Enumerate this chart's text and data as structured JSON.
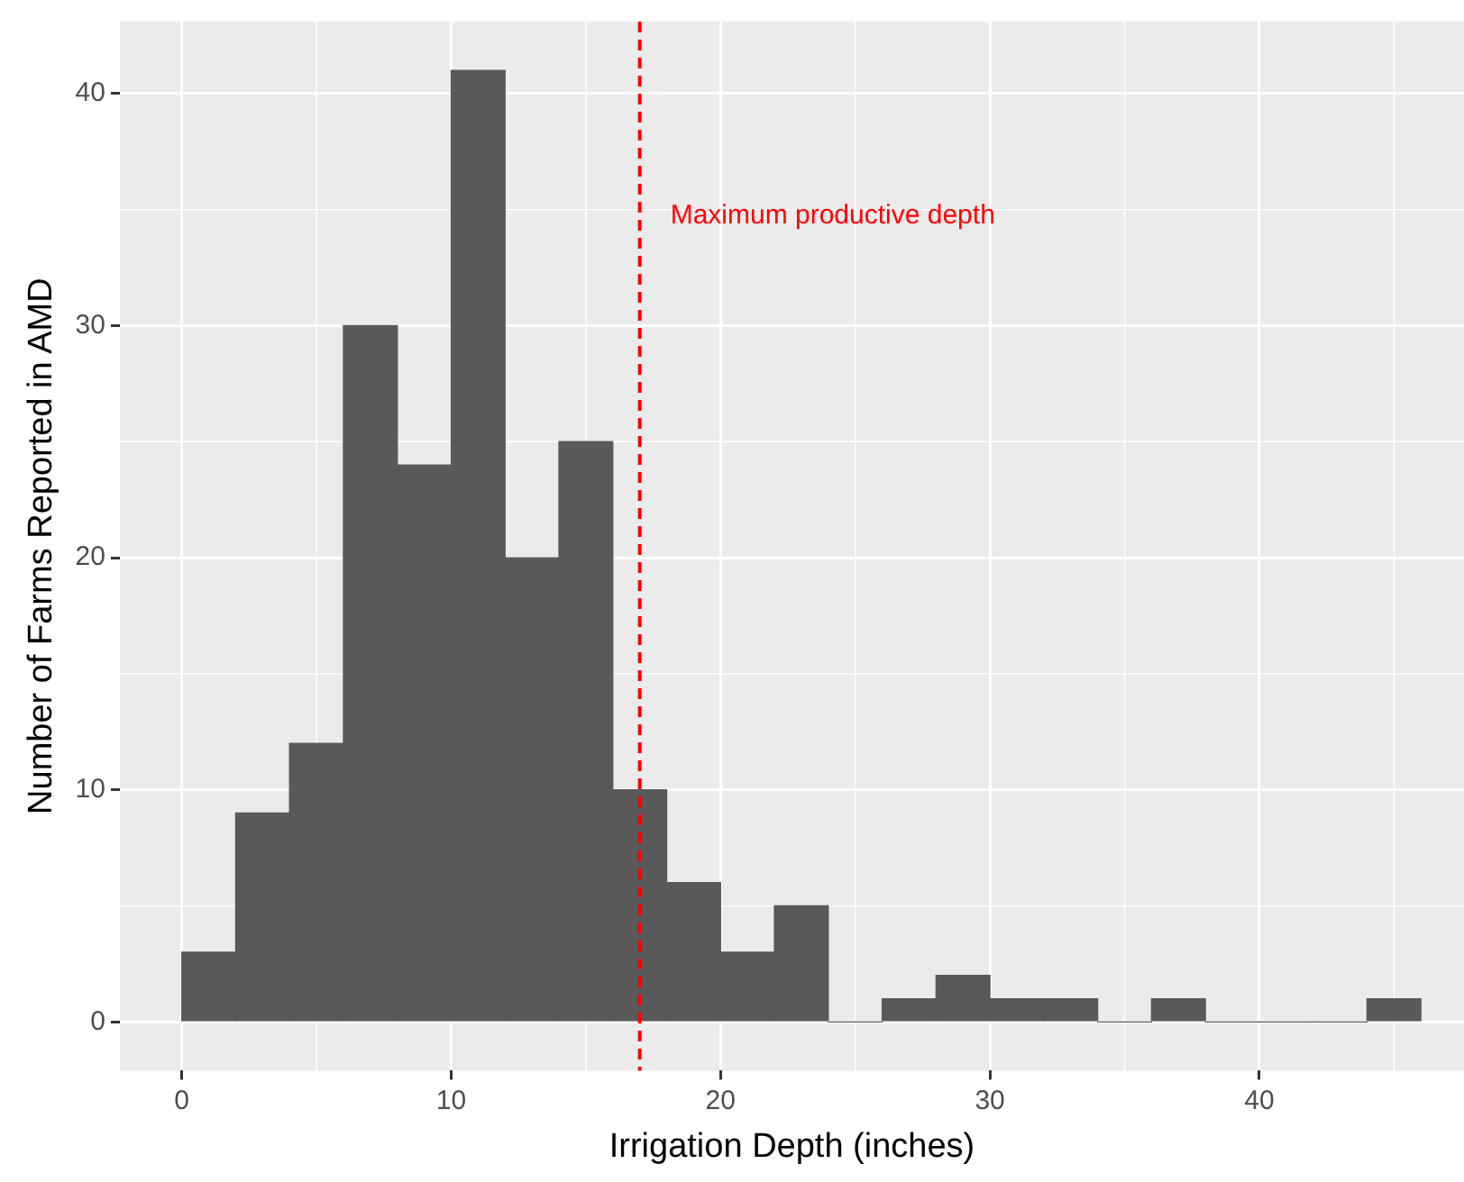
{
  "chart_data": {
    "type": "histogram",
    "xlabel": "Irrigation Depth (inches)",
    "ylabel": "Number of Farms Reported in AMD",
    "bins": [
      0,
      2,
      4,
      6,
      8,
      10,
      12,
      14,
      16,
      18,
      20,
      22,
      24,
      26,
      28,
      30,
      32,
      34,
      36,
      38,
      40,
      42,
      44,
      46
    ],
    "values": [
      3,
      9,
      12,
      30,
      24,
      41,
      20,
      25,
      10,
      6,
      3,
      5,
      0,
      1,
      2,
      1,
      1,
      0,
      1,
      0,
      0,
      0,
      1
    ],
    "color": "#595959",
    "xlim": [
      -2.3,
      47.6
    ],
    "ylim": [
      -2.1,
      43.1
    ],
    "xticks": [
      0,
      10,
      20,
      30,
      40
    ],
    "yticks": [
      0,
      10,
      20,
      30,
      40
    ],
    "ref_lines": [
      {
        "axis": "x",
        "value": 17,
        "label": "Maximum productive depth",
        "color": "#ff0000",
        "line_style": "dashed"
      }
    ],
    "grid": true,
    "legend": false
  }
}
